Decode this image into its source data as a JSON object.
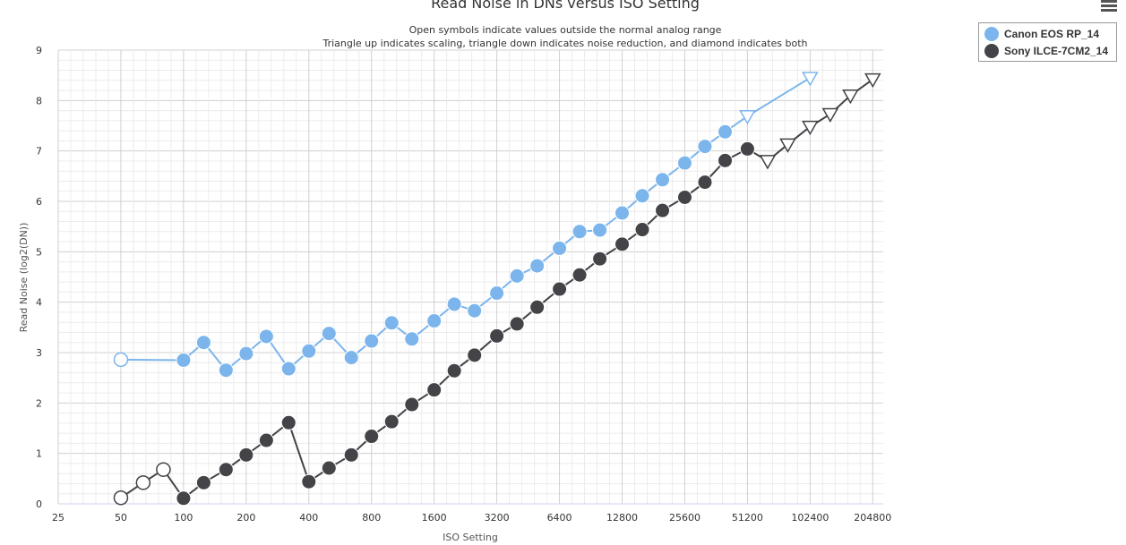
{
  "chart_data": {
    "type": "line",
    "title": "Read Noise in DNs versus ISO Setting",
    "subtitle_lines": [
      "Open symbols indicate values outside the normal analog range",
      "Triangle up indicates scaling, triangle down indicates noise reduction, and diamond indicates both"
    ],
    "xlabel": "ISO Setting",
    "ylabel": "Read Noise (log2(DN))",
    "x_scale": "log2",
    "xlim": [
      25,
      230000
    ],
    "ylim": [
      0,
      9
    ],
    "x_tick_labels": [
      "25",
      "50",
      "100",
      "200",
      "400",
      "800",
      "1600",
      "3200",
      "6400",
      "12800",
      "25600",
      "51200",
      "102400",
      "204800"
    ],
    "y_tick_labels": [
      "0",
      "1",
      "2",
      "3",
      "4",
      "5",
      "6",
      "7",
      "8",
      "9"
    ],
    "grid": true,
    "legend_position": "top-right",
    "series": [
      {
        "name": "Canon EOS RP_14",
        "color": "#7cb5ec",
        "points": [
          {
            "x": 50,
            "y": 2.86,
            "marker": "circle-open"
          },
          {
            "x": 100,
            "y": 2.85,
            "marker": "circle"
          },
          {
            "x": 125,
            "y": 3.2,
            "marker": "circle"
          },
          {
            "x": 160,
            "y": 2.65,
            "marker": "circle"
          },
          {
            "x": 200,
            "y": 2.98,
            "marker": "circle"
          },
          {
            "x": 250,
            "y": 3.32,
            "marker": "circle"
          },
          {
            "x": 320,
            "y": 2.68,
            "marker": "circle"
          },
          {
            "x": 400,
            "y": 3.03,
            "marker": "circle"
          },
          {
            "x": 500,
            "y": 3.38,
            "marker": "circle"
          },
          {
            "x": 640,
            "y": 2.9,
            "marker": "circle"
          },
          {
            "x": 800,
            "y": 3.23,
            "marker": "circle"
          },
          {
            "x": 1000,
            "y": 3.59,
            "marker": "circle"
          },
          {
            "x": 1250,
            "y": 3.27,
            "marker": "circle"
          },
          {
            "x": 1600,
            "y": 3.63,
            "marker": "circle"
          },
          {
            "x": 2000,
            "y": 3.96,
            "marker": "circle"
          },
          {
            "x": 2500,
            "y": 3.83,
            "marker": "circle"
          },
          {
            "x": 3200,
            "y": 4.18,
            "marker": "circle"
          },
          {
            "x": 4000,
            "y": 4.52,
            "marker": "circle"
          },
          {
            "x": 5000,
            "y": 4.72,
            "marker": "circle"
          },
          {
            "x": 6400,
            "y": 5.07,
            "marker": "circle"
          },
          {
            "x": 8000,
            "y": 5.4,
            "marker": "circle"
          },
          {
            "x": 10000,
            "y": 5.43,
            "marker": "circle"
          },
          {
            "x": 12800,
            "y": 5.77,
            "marker": "circle"
          },
          {
            "x": 16000,
            "y": 6.11,
            "marker": "circle"
          },
          {
            "x": 20000,
            "y": 6.43,
            "marker": "circle"
          },
          {
            "x": 25600,
            "y": 6.76,
            "marker": "circle"
          },
          {
            "x": 32000,
            "y": 7.09,
            "marker": "circle"
          },
          {
            "x": 40000,
            "y": 7.38,
            "marker": "circle"
          },
          {
            "x": 51200,
            "y": 7.69,
            "marker": "triangle-down-open"
          },
          {
            "x": 102400,
            "y": 8.45,
            "marker": "triangle-down-open"
          }
        ]
      },
      {
        "name": "Sony ILCE-7CM2_14",
        "color": "#434348",
        "points": [
          {
            "x": 50,
            "y": 0.12,
            "marker": "circle-open"
          },
          {
            "x": 64,
            "y": 0.42,
            "marker": "circle-open"
          },
          {
            "x": 80,
            "y": 0.68,
            "marker": "circle-open"
          },
          {
            "x": 100,
            "y": 0.11,
            "marker": "circle"
          },
          {
            "x": 125,
            "y": 0.42,
            "marker": "circle"
          },
          {
            "x": 160,
            "y": 0.68,
            "marker": "circle"
          },
          {
            "x": 200,
            "y": 0.97,
            "marker": "circle"
          },
          {
            "x": 250,
            "y": 1.26,
            "marker": "circle"
          },
          {
            "x": 320,
            "y": 1.61,
            "marker": "circle"
          },
          {
            "x": 400,
            "y": 0.44,
            "marker": "circle"
          },
          {
            "x": 500,
            "y": 0.71,
            "marker": "circle"
          },
          {
            "x": 640,
            "y": 0.97,
            "marker": "circle"
          },
          {
            "x": 800,
            "y": 1.34,
            "marker": "circle"
          },
          {
            "x": 1000,
            "y": 1.63,
            "marker": "circle"
          },
          {
            "x": 1250,
            "y": 1.97,
            "marker": "circle"
          },
          {
            "x": 1600,
            "y": 2.26,
            "marker": "circle"
          },
          {
            "x": 2000,
            "y": 2.64,
            "marker": "circle"
          },
          {
            "x": 2500,
            "y": 2.95,
            "marker": "circle"
          },
          {
            "x": 3200,
            "y": 3.33,
            "marker": "circle"
          },
          {
            "x": 4000,
            "y": 3.57,
            "marker": "circle"
          },
          {
            "x": 5000,
            "y": 3.9,
            "marker": "circle"
          },
          {
            "x": 6400,
            "y": 4.26,
            "marker": "circle"
          },
          {
            "x": 8000,
            "y": 4.54,
            "marker": "circle"
          },
          {
            "x": 10000,
            "y": 4.86,
            "marker": "circle"
          },
          {
            "x": 12800,
            "y": 5.15,
            "marker": "circle"
          },
          {
            "x": 16000,
            "y": 5.44,
            "marker": "circle"
          },
          {
            "x": 20000,
            "y": 5.82,
            "marker": "circle"
          },
          {
            "x": 25600,
            "y": 6.08,
            "marker": "circle"
          },
          {
            "x": 32000,
            "y": 6.38,
            "marker": "circle"
          },
          {
            "x": 40000,
            "y": 6.81,
            "marker": "circle"
          },
          {
            "x": 51200,
            "y": 7.04,
            "marker": "circle"
          },
          {
            "x": 64000,
            "y": 6.8,
            "marker": "triangle-down-open"
          },
          {
            "x": 80000,
            "y": 7.13,
            "marker": "triangle-down-open"
          },
          {
            "x": 102400,
            "y": 7.48,
            "marker": "triangle-down-open"
          },
          {
            "x": 128000,
            "y": 7.73,
            "marker": "triangle-down-open"
          },
          {
            "x": 160000,
            "y": 8.1,
            "marker": "triangle-down-open"
          },
          {
            "x": 204800,
            "y": 8.42,
            "marker": "triangle-down-open"
          }
        ]
      }
    ]
  },
  "legend": {
    "items": [
      {
        "label": "Canon EOS RP_14",
        "color": "#7cb5ec"
      },
      {
        "label": "Sony ILCE-7CM2_14",
        "color": "#434348"
      }
    ]
  },
  "menu": {
    "icon": "hamburger-menu-icon"
  }
}
